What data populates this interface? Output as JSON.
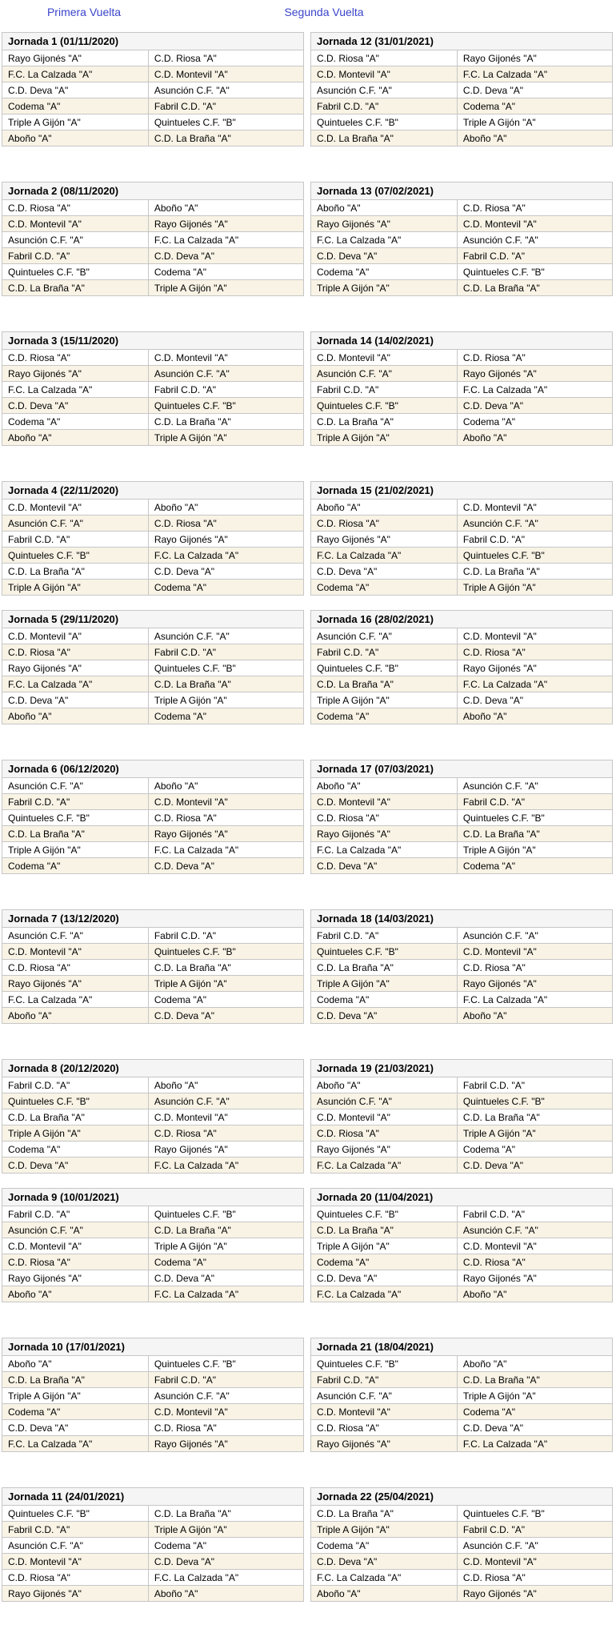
{
  "titles": {
    "primera": "Primera Vuelta",
    "segunda": "Segunda Vuelta"
  },
  "colors": {
    "title_text": "#3a44cb",
    "alt_row": "#f8f3e5",
    "header_bg": "#f5f5f5",
    "border": "#c6c6c6"
  },
  "primera_vuelta": [
    {
      "title": "Jornada 1 (01/11/2020)",
      "matches": [
        [
          "Rayo Gijonés \"A\"",
          "C.D. Riosa \"A\""
        ],
        [
          "F.C. La Calzada \"A\"",
          "C.D. Montevil \"A\""
        ],
        [
          "C.D. Deva \"A\"",
          "Asunción C.F. \"A\""
        ],
        [
          "Codema \"A\"",
          "Fabril C.D. \"A\""
        ],
        [
          "Triple A Gijón \"A\"",
          "Quintueles C.F. \"B\""
        ],
        [
          "Aboño \"A\"",
          "C.D. La Braña \"A\""
        ]
      ]
    },
    {
      "title": "Jornada 2 (08/11/2020)",
      "matches": [
        [
          "C.D. Riosa \"A\"",
          "Aboño \"A\""
        ],
        [
          "C.D. Montevil \"A\"",
          "Rayo Gijonés \"A\""
        ],
        [
          "Asunción C.F. \"A\"",
          "F.C. La Calzada \"A\""
        ],
        [
          "Fabril C.D. \"A\"",
          "C.D. Deva \"A\""
        ],
        [
          "Quintueles C.F. \"B\"",
          "Codema \"A\""
        ],
        [
          "C.D. La Braña \"A\"",
          "Triple A Gijón \"A\""
        ]
      ]
    },
    {
      "title": "Jornada 3 (15/11/2020)",
      "matches": [
        [
          "C.D. Riosa \"A\"",
          "C.D. Montevil \"A\""
        ],
        [
          "Rayo Gijonés \"A\"",
          "Asunción C.F. \"A\""
        ],
        [
          "F.C. La Calzada \"A\"",
          "Fabril C.D. \"A\""
        ],
        [
          "C.D. Deva \"A\"",
          "Quintueles C.F. \"B\""
        ],
        [
          "Codema \"A\"",
          "C.D. La Braña \"A\""
        ],
        [
          "Aboño \"A\"",
          "Triple A Gijón \"A\""
        ]
      ]
    },
    {
      "title": "Jornada 4 (22/11/2020)",
      "matches": [
        [
          "C.D. Montevil \"A\"",
          "Aboño \"A\""
        ],
        [
          "Asunción C.F. \"A\"",
          "C.D. Riosa \"A\""
        ],
        [
          "Fabril C.D. \"A\"",
          "Rayo Gijonés \"A\""
        ],
        [
          "Quintueles C.F. \"B\"",
          "F.C. La Calzada \"A\""
        ],
        [
          "C.D. La Braña \"A\"",
          "C.D. Deva \"A\""
        ],
        [
          "Triple A Gijón \"A\"",
          "Codema \"A\""
        ]
      ]
    },
    {
      "title": "Jornada 5 (29/11/2020)",
      "matches": [
        [
          "C.D. Montevil \"A\"",
          "Asunción C.F. \"A\""
        ],
        [
          "C.D. Riosa \"A\"",
          "Fabril C.D. \"A\""
        ],
        [
          "Rayo Gijonés \"A\"",
          "Quintueles C.F. \"B\""
        ],
        [
          "F.C. La Calzada \"A\"",
          "C.D. La Braña \"A\""
        ],
        [
          "C.D. Deva \"A\"",
          "Triple A Gijón \"A\""
        ],
        [
          "Aboño \"A\"",
          "Codema \"A\""
        ]
      ]
    },
    {
      "title": "Jornada 6 (06/12/2020)",
      "matches": [
        [
          "Asunción C.F. \"A\"",
          "Aboño \"A\""
        ],
        [
          "Fabril C.D. \"A\"",
          "C.D. Montevil \"A\""
        ],
        [
          "Quintueles C.F. \"B\"",
          "C.D. Riosa \"A\""
        ],
        [
          "C.D. La Braña \"A\"",
          "Rayo Gijonés \"A\""
        ],
        [
          "Triple A Gijón \"A\"",
          "F.C. La Calzada \"A\""
        ],
        [
          "Codema \"A\"",
          "C.D. Deva \"A\""
        ]
      ]
    },
    {
      "title": "Jornada 7 (13/12/2020)",
      "matches": [
        [
          "Asunción C.F. \"A\"",
          "Fabril C.D. \"A\""
        ],
        [
          "C.D. Montevil \"A\"",
          "Quintueles C.F. \"B\""
        ],
        [
          "C.D. Riosa \"A\"",
          "C.D. La Braña \"A\""
        ],
        [
          "Rayo Gijonés \"A\"",
          "Triple A Gijón \"A\""
        ],
        [
          "F.C. La Calzada \"A\"",
          "Codema \"A\""
        ],
        [
          "Aboño \"A\"",
          "C.D. Deva \"A\""
        ]
      ]
    },
    {
      "title": "Jornada 8 (20/12/2020)",
      "matches": [
        [
          "Fabril C.D. \"A\"",
          "Aboño \"A\""
        ],
        [
          "Quintueles C.F. \"B\"",
          "Asunción C.F. \"A\""
        ],
        [
          "C.D. La Braña \"A\"",
          "C.D. Montevil \"A\""
        ],
        [
          "Triple A Gijón \"A\"",
          "C.D. Riosa \"A\""
        ],
        [
          "Codema \"A\"",
          "Rayo Gijonés \"A\""
        ],
        [
          "C.D. Deva \"A\"",
          "F.C. La Calzada \"A\""
        ]
      ]
    },
    {
      "title": "Jornada 9 (10/01/2021)",
      "matches": [
        [
          "Fabril C.D. \"A\"",
          "Quintueles C.F. \"B\""
        ],
        [
          "Asunción C.F. \"A\"",
          "C.D. La Braña \"A\""
        ],
        [
          "C.D. Montevil \"A\"",
          "Triple A Gijón \"A\""
        ],
        [
          "C.D. Riosa \"A\"",
          "Codema \"A\""
        ],
        [
          "Rayo Gijonés \"A\"",
          "C.D. Deva \"A\""
        ],
        [
          "Aboño \"A\"",
          "F.C. La Calzada \"A\""
        ]
      ]
    },
    {
      "title": "Jornada 10 (17/01/2021)",
      "matches": [
        [
          "Aboño \"A\"",
          "Quintueles C.F. \"B\""
        ],
        [
          "C.D. La Braña \"A\"",
          "Fabril C.D. \"A\""
        ],
        [
          "Triple A Gijón \"A\"",
          "Asunción C.F. \"A\""
        ],
        [
          "Codema \"A\"",
          "C.D. Montevil \"A\""
        ],
        [
          "C.D. Deva \"A\"",
          "C.D. Riosa \"A\""
        ],
        [
          "F.C. La Calzada \"A\"",
          "Rayo Gijonés \"A\""
        ]
      ]
    },
    {
      "title": "Jornada 11 (24/01/2021)",
      "matches": [
        [
          "Quintueles C.F. \"B\"",
          "C.D. La Braña \"A\""
        ],
        [
          "Fabril C.D. \"A\"",
          "Triple A Gijón \"A\""
        ],
        [
          "Asunción C.F. \"A\"",
          "Codema \"A\""
        ],
        [
          "C.D. Montevil \"A\"",
          "C.D. Deva \"A\""
        ],
        [
          "C.D. Riosa \"A\"",
          "F.C. La Calzada \"A\""
        ],
        [
          "Rayo Gijonés \"A\"",
          "Aboño \"A\""
        ]
      ]
    }
  ],
  "segunda_vuelta": [
    {
      "title": "Jornada 12 (31/01/2021)",
      "matches": [
        [
          "C.D. Riosa \"A\"",
          "Rayo Gijonés \"A\""
        ],
        [
          "C.D. Montevil \"A\"",
          "F.C. La Calzada \"A\""
        ],
        [
          "Asunción C.F. \"A\"",
          "C.D. Deva \"A\""
        ],
        [
          "Fabril C.D. \"A\"",
          "Codema \"A\""
        ],
        [
          "Quintueles C.F. \"B\"",
          "Triple A Gijón \"A\""
        ],
        [
          "C.D. La Braña \"A\"",
          "Aboño \"A\""
        ]
      ]
    },
    {
      "title": "Jornada 13 (07/02/2021)",
      "matches": [
        [
          "Aboño \"A\"",
          "C.D. Riosa \"A\""
        ],
        [
          "Rayo Gijonés \"A\"",
          "C.D. Montevil \"A\""
        ],
        [
          "F.C. La Calzada \"A\"",
          "Asunción C.F. \"A\""
        ],
        [
          "C.D. Deva \"A\"",
          "Fabril C.D. \"A\""
        ],
        [
          "Codema \"A\"",
          "Quintueles C.F. \"B\""
        ],
        [
          "Triple A Gijón \"A\"",
          "C.D. La Braña \"A\""
        ]
      ]
    },
    {
      "title": "Jornada 14 (14/02/2021)",
      "matches": [
        [
          "C.D. Montevil \"A\"",
          "C.D. Riosa \"A\""
        ],
        [
          "Asunción C.F. \"A\"",
          "Rayo Gijonés \"A\""
        ],
        [
          "Fabril C.D. \"A\"",
          "F.C. La Calzada \"A\""
        ],
        [
          "Quintueles C.F. \"B\"",
          "C.D. Deva \"A\""
        ],
        [
          "C.D. La Braña \"A\"",
          "Codema \"A\""
        ],
        [
          "Triple A Gijón \"A\"",
          "Aboño \"A\""
        ]
      ]
    },
    {
      "title": "Jornada 15 (21/02/2021)",
      "matches": [
        [
          "Aboño \"A\"",
          "C.D. Montevil \"A\""
        ],
        [
          "C.D. Riosa \"A\"",
          "Asunción C.F. \"A\""
        ],
        [
          "Rayo Gijonés \"A\"",
          "Fabril C.D. \"A\""
        ],
        [
          "F.C. La Calzada \"A\"",
          "Quintueles C.F. \"B\""
        ],
        [
          "C.D. Deva \"A\"",
          "C.D. La Braña \"A\""
        ],
        [
          "Codema \"A\"",
          "Triple A Gijón \"A\""
        ]
      ]
    },
    {
      "title": "Jornada 16 (28/02/2021)",
      "matches": [
        [
          "Asunción C.F. \"A\"",
          "C.D. Montevil \"A\""
        ],
        [
          "Fabril C.D. \"A\"",
          "C.D. Riosa \"A\""
        ],
        [
          "Quintueles C.F. \"B\"",
          "Rayo Gijonés \"A\""
        ],
        [
          "C.D. La Braña \"A\"",
          "F.C. La Calzada \"A\""
        ],
        [
          "Triple A Gijón \"A\"",
          "C.D. Deva \"A\""
        ],
        [
          "Codema \"A\"",
          "Aboño \"A\""
        ]
      ]
    },
    {
      "title": "Jornada 17 (07/03/2021)",
      "matches": [
        [
          "Aboño \"A\"",
          "Asunción C.F. \"A\""
        ],
        [
          "C.D. Montevil \"A\"",
          "Fabril C.D. \"A\""
        ],
        [
          "C.D. Riosa \"A\"",
          "Quintueles C.F. \"B\""
        ],
        [
          "Rayo Gijonés \"A\"",
          "C.D. La Braña \"A\""
        ],
        [
          "F.C. La Calzada \"A\"",
          "Triple A Gijón \"A\""
        ],
        [
          "C.D. Deva \"A\"",
          "Codema \"A\""
        ]
      ]
    },
    {
      "title": "Jornada 18 (14/03/2021)",
      "matches": [
        [
          "Fabril C.D. \"A\"",
          "Asunción C.F. \"A\""
        ],
        [
          "Quintueles C.F. \"B\"",
          "C.D. Montevil \"A\""
        ],
        [
          "C.D. La Braña \"A\"",
          "C.D. Riosa \"A\""
        ],
        [
          "Triple A Gijón \"A\"",
          "Rayo Gijonés \"A\""
        ],
        [
          "Codema \"A\"",
          "F.C. La Calzada \"A\""
        ],
        [
          "C.D. Deva \"A\"",
          "Aboño \"A\""
        ]
      ]
    },
    {
      "title": "Jornada 19 (21/03/2021)",
      "matches": [
        [
          "Aboño \"A\"",
          "Fabril C.D. \"A\""
        ],
        [
          "Asunción C.F. \"A\"",
          "Quintueles C.F. \"B\""
        ],
        [
          "C.D. Montevil \"A\"",
          "C.D. La Braña \"A\""
        ],
        [
          "C.D. Riosa \"A\"",
          "Triple A Gijón \"A\""
        ],
        [
          "Rayo Gijonés \"A\"",
          "Codema \"A\""
        ],
        [
          "F.C. La Calzada \"A\"",
          "C.D. Deva \"A\""
        ]
      ]
    },
    {
      "title": "Jornada 20 (11/04/2021)",
      "matches": [
        [
          "Quintueles C.F. \"B\"",
          "Fabril C.D. \"A\""
        ],
        [
          "C.D. La Braña \"A\"",
          "Asunción C.F. \"A\""
        ],
        [
          "Triple A Gijón \"A\"",
          "C.D. Montevil \"A\""
        ],
        [
          "Codema \"A\"",
          "C.D. Riosa \"A\""
        ],
        [
          "C.D. Deva \"A\"",
          "Rayo Gijonés \"A\""
        ],
        [
          "F.C. La Calzada \"A\"",
          "Aboño \"A\""
        ]
      ]
    },
    {
      "title": "Jornada 21 (18/04/2021)",
      "matches": [
        [
          "Quintueles C.F. \"B\"",
          "Aboño \"A\""
        ],
        [
          "Fabril C.D. \"A\"",
          "C.D. La Braña \"A\""
        ],
        [
          "Asunción C.F. \"A\"",
          "Triple A Gijón \"A\""
        ],
        [
          "C.D. Montevil \"A\"",
          "Codema \"A\""
        ],
        [
          "C.D. Riosa \"A\"",
          "C.D. Deva \"A\""
        ],
        [
          "Rayo Gijonés \"A\"",
          "F.C. La Calzada \"A\""
        ]
      ]
    },
    {
      "title": "Jornada 22 (25/04/2021)",
      "matches": [
        [
          "C.D. La Braña \"A\"",
          "Quintueles C.F. \"B\""
        ],
        [
          "Triple A Gijón \"A\"",
          "Fabril C.D. \"A\""
        ],
        [
          "Codema \"A\"",
          "Asunción C.F. \"A\""
        ],
        [
          "C.D. Deva \"A\"",
          "C.D. Montevil \"A\""
        ],
        [
          "F.C. La Calzada \"A\"",
          "C.D. Riosa \"A\""
        ],
        [
          "Aboño \"A\"",
          "Rayo Gijonés \"A\""
        ]
      ]
    }
  ]
}
